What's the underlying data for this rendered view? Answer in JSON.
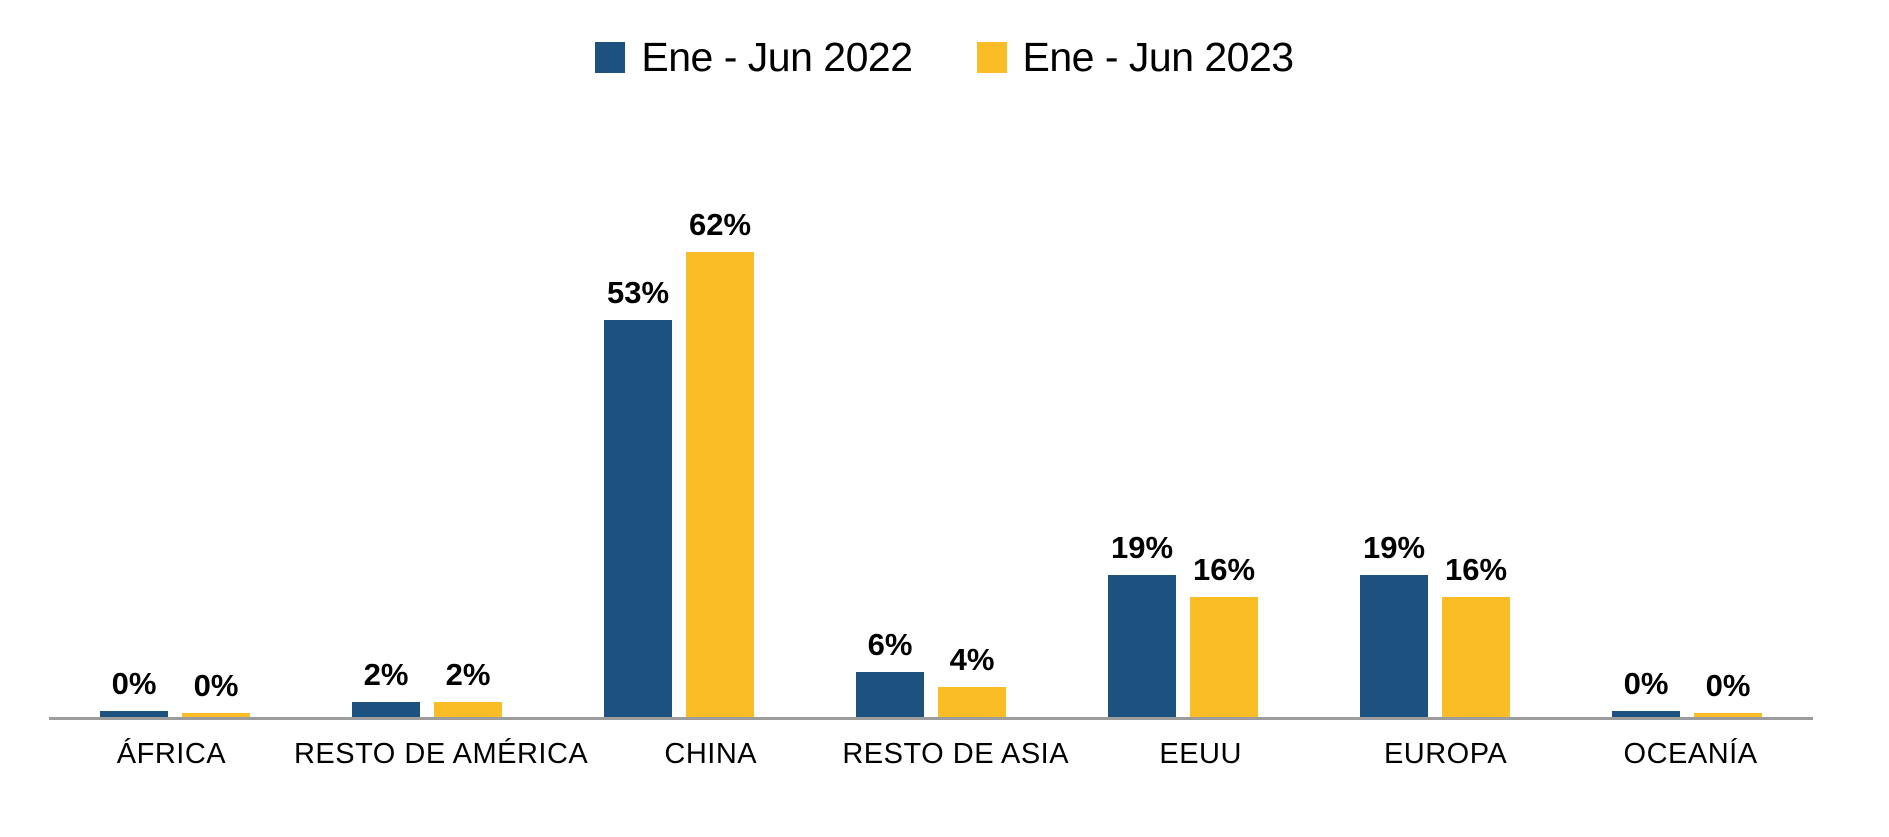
{
  "chart_data": {
    "type": "bar",
    "title": "",
    "xlabel": "",
    "ylabel": "",
    "categories": [
      "ÁFRICA",
      "RESTO DE AMÉRICA",
      "CHINA",
      "RESTO DE ASIA",
      "EEUU",
      "EUROPA",
      "OCEANÍA"
    ],
    "series": [
      {
        "name": "Ene - Jun 2022",
        "color": "#1D5180",
        "values": [
          0,
          2,
          53,
          6,
          19,
          19,
          0
        ],
        "labels": [
          "0%",
          "2%",
          "53%",
          "6%",
          "19%",
          "19%",
          "0%"
        ]
      },
      {
        "name": "Ene - Jun 2023",
        "color": "#FABD26",
        "values": [
          0,
          2,
          62,
          4,
          16,
          16,
          0
        ],
        "labels": [
          "0%",
          "2%",
          "62%",
          "4%",
          "16%",
          "16%",
          "0%"
        ]
      }
    ],
    "ylim": [
      0,
      70
    ],
    "grid": false,
    "y_axis_visible": false,
    "legend_position": "top-center",
    "data_labels": "outside-end-bold",
    "axis_line_color": "#9C9C9C",
    "background_color": "#FFFFFF"
  }
}
